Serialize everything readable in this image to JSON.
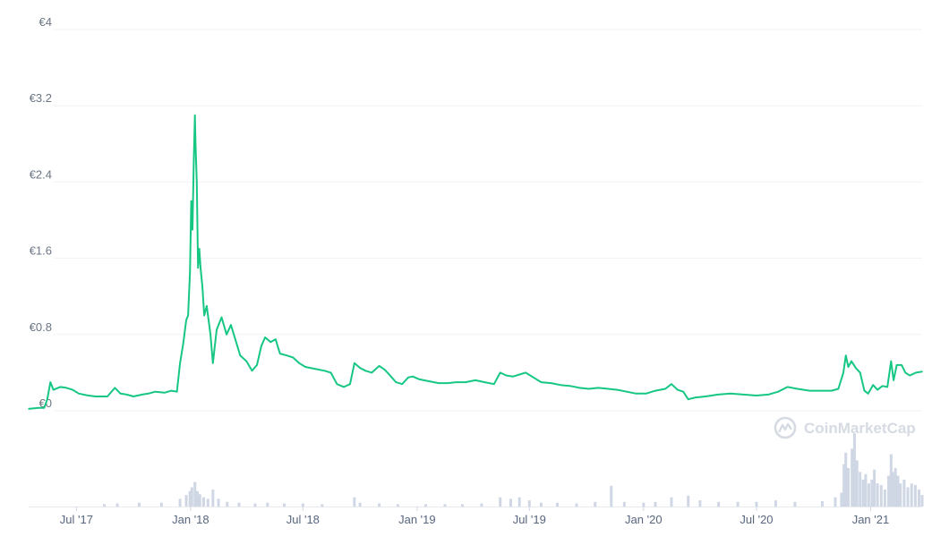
{
  "colors": {
    "price_line": "#16c784",
    "volume_bars": "#cfd6e4",
    "grid": "#eff2f5",
    "watermark": "#d6dbe3"
  },
  "watermark": {
    "text": "CoinMarketCap",
    "icon": "coinmarketcap-logo-icon"
  },
  "chart_data": {
    "type": "line",
    "y_axis": {
      "ticks": [
        "€4",
        "€3.2",
        "€2.4",
        "€1.6",
        "€0.8",
        "€0"
      ],
      "range": [
        0,
        4
      ],
      "tick_values": [
        4,
        3.2,
        2.4,
        1.6,
        0.8,
        0
      ]
    },
    "x_axis": {
      "ticks": [
        "Jul '17",
        "Jan '18",
        "Jul '18",
        "Jan '19",
        "Jul '19",
        "Jan '20",
        "Jul '20",
        "Jan '21"
      ],
      "tick_dates": [
        "2017-07-01",
        "2018-01-01",
        "2018-07-01",
        "2019-01-01",
        "2019-07-01",
        "2020-01-01",
        "2020-07-01",
        "2021-01-01"
      ],
      "range": [
        "2017-04-15",
        "2021-03-25"
      ]
    },
    "grid": true,
    "series": [
      {
        "type": "line",
        "points": [
          [
            "2017-04-15",
            0.02
          ],
          [
            "2017-05-01",
            0.03
          ],
          [
            "2017-05-10",
            0.03
          ],
          [
            "2017-05-15",
            0.12
          ],
          [
            "2017-05-20",
            0.3
          ],
          [
            "2017-05-25",
            0.22
          ],
          [
            "2017-06-05",
            0.25
          ],
          [
            "2017-06-15",
            0.24
          ],
          [
            "2017-06-25",
            0.22
          ],
          [
            "2017-07-05",
            0.18
          ],
          [
            "2017-07-20",
            0.16
          ],
          [
            "2017-08-01",
            0.15
          ],
          [
            "2017-08-20",
            0.15
          ],
          [
            "2017-09-01",
            0.24
          ],
          [
            "2017-09-10",
            0.18
          ],
          [
            "2017-09-20",
            0.17
          ],
          [
            "2017-10-01",
            0.15
          ],
          [
            "2017-10-15",
            0.17
          ],
          [
            "2017-10-25",
            0.18
          ],
          [
            "2017-11-05",
            0.2
          ],
          [
            "2017-11-20",
            0.19
          ],
          [
            "2017-12-01",
            0.21
          ],
          [
            "2017-12-10",
            0.2
          ],
          [
            "2017-12-15",
            0.5
          ],
          [
            "2017-12-20",
            0.7
          ],
          [
            "2017-12-25",
            0.95
          ],
          [
            "2017-12-28",
            1.0
          ],
          [
            "2017-12-31",
            1.45
          ],
          [
            "2018-01-02",
            2.2
          ],
          [
            "2018-01-04",
            1.9
          ],
          [
            "2018-01-06",
            2.6
          ],
          [
            "2018-01-08",
            3.1
          ],
          [
            "2018-01-09",
            2.8
          ],
          [
            "2018-01-11",
            2.4
          ],
          [
            "2018-01-13",
            1.5
          ],
          [
            "2018-01-15",
            1.7
          ],
          [
            "2018-01-17",
            1.5
          ],
          [
            "2018-01-20",
            1.3
          ],
          [
            "2018-01-23",
            1.0
          ],
          [
            "2018-01-27",
            1.1
          ],
          [
            "2018-02-02",
            0.8
          ],
          [
            "2018-02-06",
            0.5
          ],
          [
            "2018-02-12",
            0.85
          ],
          [
            "2018-02-20",
            0.98
          ],
          [
            "2018-02-28",
            0.8
          ],
          [
            "2018-03-07",
            0.9
          ],
          [
            "2018-03-14",
            0.75
          ],
          [
            "2018-03-22",
            0.58
          ],
          [
            "2018-04-01",
            0.52
          ],
          [
            "2018-04-10",
            0.42
          ],
          [
            "2018-04-18",
            0.48
          ],
          [
            "2018-04-25",
            0.68
          ],
          [
            "2018-05-01",
            0.77
          ],
          [
            "2018-05-10",
            0.72
          ],
          [
            "2018-05-18",
            0.75
          ],
          [
            "2018-05-25",
            0.6
          ],
          [
            "2018-06-05",
            0.58
          ],
          [
            "2018-06-15",
            0.56
          ],
          [
            "2018-06-25",
            0.5
          ],
          [
            "2018-07-05",
            0.46
          ],
          [
            "2018-07-20",
            0.44
          ],
          [
            "2018-08-05",
            0.42
          ],
          [
            "2018-08-15",
            0.4
          ],
          [
            "2018-08-25",
            0.28
          ],
          [
            "2018-09-05",
            0.25
          ],
          [
            "2018-09-15",
            0.28
          ],
          [
            "2018-09-22",
            0.5
          ],
          [
            "2018-10-01",
            0.45
          ],
          [
            "2018-10-10",
            0.42
          ],
          [
            "2018-10-20",
            0.4
          ],
          [
            "2018-11-01",
            0.47
          ],
          [
            "2018-11-10",
            0.43
          ],
          [
            "2018-11-20",
            0.36
          ],
          [
            "2018-11-28",
            0.3
          ],
          [
            "2018-12-08",
            0.28
          ],
          [
            "2018-12-18",
            0.35
          ],
          [
            "2018-12-25",
            0.36
          ],
          [
            "2019-01-05",
            0.33
          ],
          [
            "2019-01-20",
            0.31
          ],
          [
            "2019-02-05",
            0.29
          ],
          [
            "2019-02-20",
            0.29
          ],
          [
            "2019-03-05",
            0.3
          ],
          [
            "2019-03-20",
            0.3
          ],
          [
            "2019-04-05",
            0.32
          ],
          [
            "2019-04-20",
            0.3
          ],
          [
            "2019-05-05",
            0.28
          ],
          [
            "2019-05-15",
            0.4
          ],
          [
            "2019-05-25",
            0.37
          ],
          [
            "2019-06-05",
            0.36
          ],
          [
            "2019-06-15",
            0.38
          ],
          [
            "2019-06-25",
            0.4
          ],
          [
            "2019-07-05",
            0.36
          ],
          [
            "2019-07-20",
            0.3
          ],
          [
            "2019-08-05",
            0.29
          ],
          [
            "2019-08-20",
            0.27
          ],
          [
            "2019-09-05",
            0.26
          ],
          [
            "2019-09-20",
            0.24
          ],
          [
            "2019-10-05",
            0.23
          ],
          [
            "2019-10-20",
            0.24
          ],
          [
            "2019-11-05",
            0.23
          ],
          [
            "2019-11-20",
            0.22
          ],
          [
            "2019-12-05",
            0.2
          ],
          [
            "2019-12-20",
            0.18
          ],
          [
            "2020-01-05",
            0.18
          ],
          [
            "2020-01-20",
            0.21
          ],
          [
            "2020-02-05",
            0.23
          ],
          [
            "2020-02-15",
            0.28
          ],
          [
            "2020-02-25",
            0.22
          ],
          [
            "2020-03-05",
            0.2
          ],
          [
            "2020-03-13",
            0.12
          ],
          [
            "2020-03-25",
            0.14
          ],
          [
            "2020-04-10",
            0.15
          ],
          [
            "2020-04-30",
            0.17
          ],
          [
            "2020-05-20",
            0.18
          ],
          [
            "2020-06-10",
            0.17
          ],
          [
            "2020-07-01",
            0.16
          ],
          [
            "2020-07-20",
            0.17
          ],
          [
            "2020-08-05",
            0.2
          ],
          [
            "2020-08-20",
            0.25
          ],
          [
            "2020-09-05",
            0.23
          ],
          [
            "2020-09-25",
            0.21
          ],
          [
            "2020-10-15",
            0.21
          ],
          [
            "2020-10-30",
            0.21
          ],
          [
            "2020-11-10",
            0.23
          ],
          [
            "2020-11-18",
            0.4
          ],
          [
            "2020-11-22",
            0.58
          ],
          [
            "2020-11-26",
            0.46
          ],
          [
            "2020-12-01",
            0.52
          ],
          [
            "2020-12-08",
            0.45
          ],
          [
            "2020-12-15",
            0.4
          ],
          [
            "2020-12-22",
            0.21
          ],
          [
            "2020-12-28",
            0.18
          ],
          [
            "2021-01-05",
            0.27
          ],
          [
            "2021-01-12",
            0.22
          ],
          [
            "2021-01-20",
            0.26
          ],
          [
            "2021-01-28",
            0.25
          ],
          [
            "2021-02-03",
            0.52
          ],
          [
            "2021-02-07",
            0.32
          ],
          [
            "2021-02-12",
            0.48
          ],
          [
            "2021-02-20",
            0.48
          ],
          [
            "2021-02-26",
            0.4
          ],
          [
            "2021-03-05",
            0.37
          ],
          [
            "2021-03-15",
            0.4
          ],
          [
            "2021-03-25",
            0.41
          ]
        ]
      },
      {
        "type": "bar",
        "name": "",
        "scale": "relative",
        "points": [
          [
            "2017-08-15",
            0.03
          ],
          [
            "2017-09-05",
            0.04
          ],
          [
            "2017-10-10",
            0.05
          ],
          [
            "2017-11-15",
            0.05
          ],
          [
            "2017-12-15",
            0.1
          ],
          [
            "2017-12-25",
            0.15
          ],
          [
            "2017-12-31",
            0.2
          ],
          [
            "2018-01-03",
            0.25
          ],
          [
            "2018-01-08",
            0.32
          ],
          [
            "2018-01-12",
            0.2
          ],
          [
            "2018-01-16",
            0.16
          ],
          [
            "2018-01-22",
            0.12
          ],
          [
            "2018-01-29",
            0.1
          ],
          [
            "2018-02-06",
            0.22
          ],
          [
            "2018-02-15",
            0.1
          ],
          [
            "2018-03-01",
            0.06
          ],
          [
            "2018-03-20",
            0.05
          ],
          [
            "2018-04-15",
            0.04
          ],
          [
            "2018-05-05",
            0.05
          ],
          [
            "2018-06-01",
            0.04
          ],
          [
            "2018-07-01",
            0.04
          ],
          [
            "2018-08-01",
            0.03
          ],
          [
            "2018-09-22",
            0.12
          ],
          [
            "2018-10-01",
            0.05
          ],
          [
            "2018-11-01",
            0.04
          ],
          [
            "2018-12-01",
            0.03
          ],
          [
            "2019-01-15",
            0.03
          ],
          [
            "2019-02-15",
            0.03
          ],
          [
            "2019-03-15",
            0.03
          ],
          [
            "2019-04-15",
            0.04
          ],
          [
            "2019-05-15",
            0.12
          ],
          [
            "2019-06-01",
            0.1
          ],
          [
            "2019-06-15",
            0.12
          ],
          [
            "2019-07-01",
            0.08
          ],
          [
            "2019-07-20",
            0.05
          ],
          [
            "2019-08-15",
            0.05
          ],
          [
            "2019-09-15",
            0.04
          ],
          [
            "2019-10-15",
            0.06
          ],
          [
            "2019-11-10",
            0.27
          ],
          [
            "2019-12-01",
            0.06
          ],
          [
            "2020-01-01",
            0.05
          ],
          [
            "2020-01-20",
            0.06
          ],
          [
            "2020-02-15",
            0.12
          ],
          [
            "2020-03-13",
            0.14
          ],
          [
            "2020-04-01",
            0.08
          ],
          [
            "2020-05-01",
            0.06
          ],
          [
            "2020-06-01",
            0.06
          ],
          [
            "2020-07-01",
            0.06
          ],
          [
            "2020-08-01",
            0.08
          ],
          [
            "2020-09-01",
            0.06
          ],
          [
            "2020-10-15",
            0.07
          ],
          [
            "2020-11-05",
            0.12
          ],
          [
            "2020-11-15",
            0.18
          ],
          [
            "2020-11-19",
            0.55
          ],
          [
            "2020-11-22",
            0.7
          ],
          [
            "2020-11-26",
            0.5
          ],
          [
            "2020-12-02",
            0.75
          ],
          [
            "2020-12-06",
            0.95
          ],
          [
            "2020-12-10",
            0.6
          ],
          [
            "2020-12-15",
            0.45
          ],
          [
            "2020-12-20",
            0.35
          ],
          [
            "2020-12-24",
            0.42
          ],
          [
            "2020-12-29",
            0.3
          ],
          [
            "2021-01-03",
            0.35
          ],
          [
            "2021-01-07",
            0.48
          ],
          [
            "2021-01-12",
            0.3
          ],
          [
            "2021-01-18",
            0.28
          ],
          [
            "2021-01-24",
            0.22
          ],
          [
            "2021-01-30",
            0.4
          ],
          [
            "2021-02-03",
            0.68
          ],
          [
            "2021-02-06",
            0.45
          ],
          [
            "2021-02-10",
            0.5
          ],
          [
            "2021-02-14",
            0.4
          ],
          [
            "2021-02-18",
            0.3
          ],
          [
            "2021-02-24",
            0.35
          ],
          [
            "2021-03-02",
            0.25
          ],
          [
            "2021-03-08",
            0.3
          ],
          [
            "2021-03-14",
            0.28
          ],
          [
            "2021-03-20",
            0.22
          ],
          [
            "2021-03-25",
            0.15
          ]
        ]
      }
    ]
  }
}
